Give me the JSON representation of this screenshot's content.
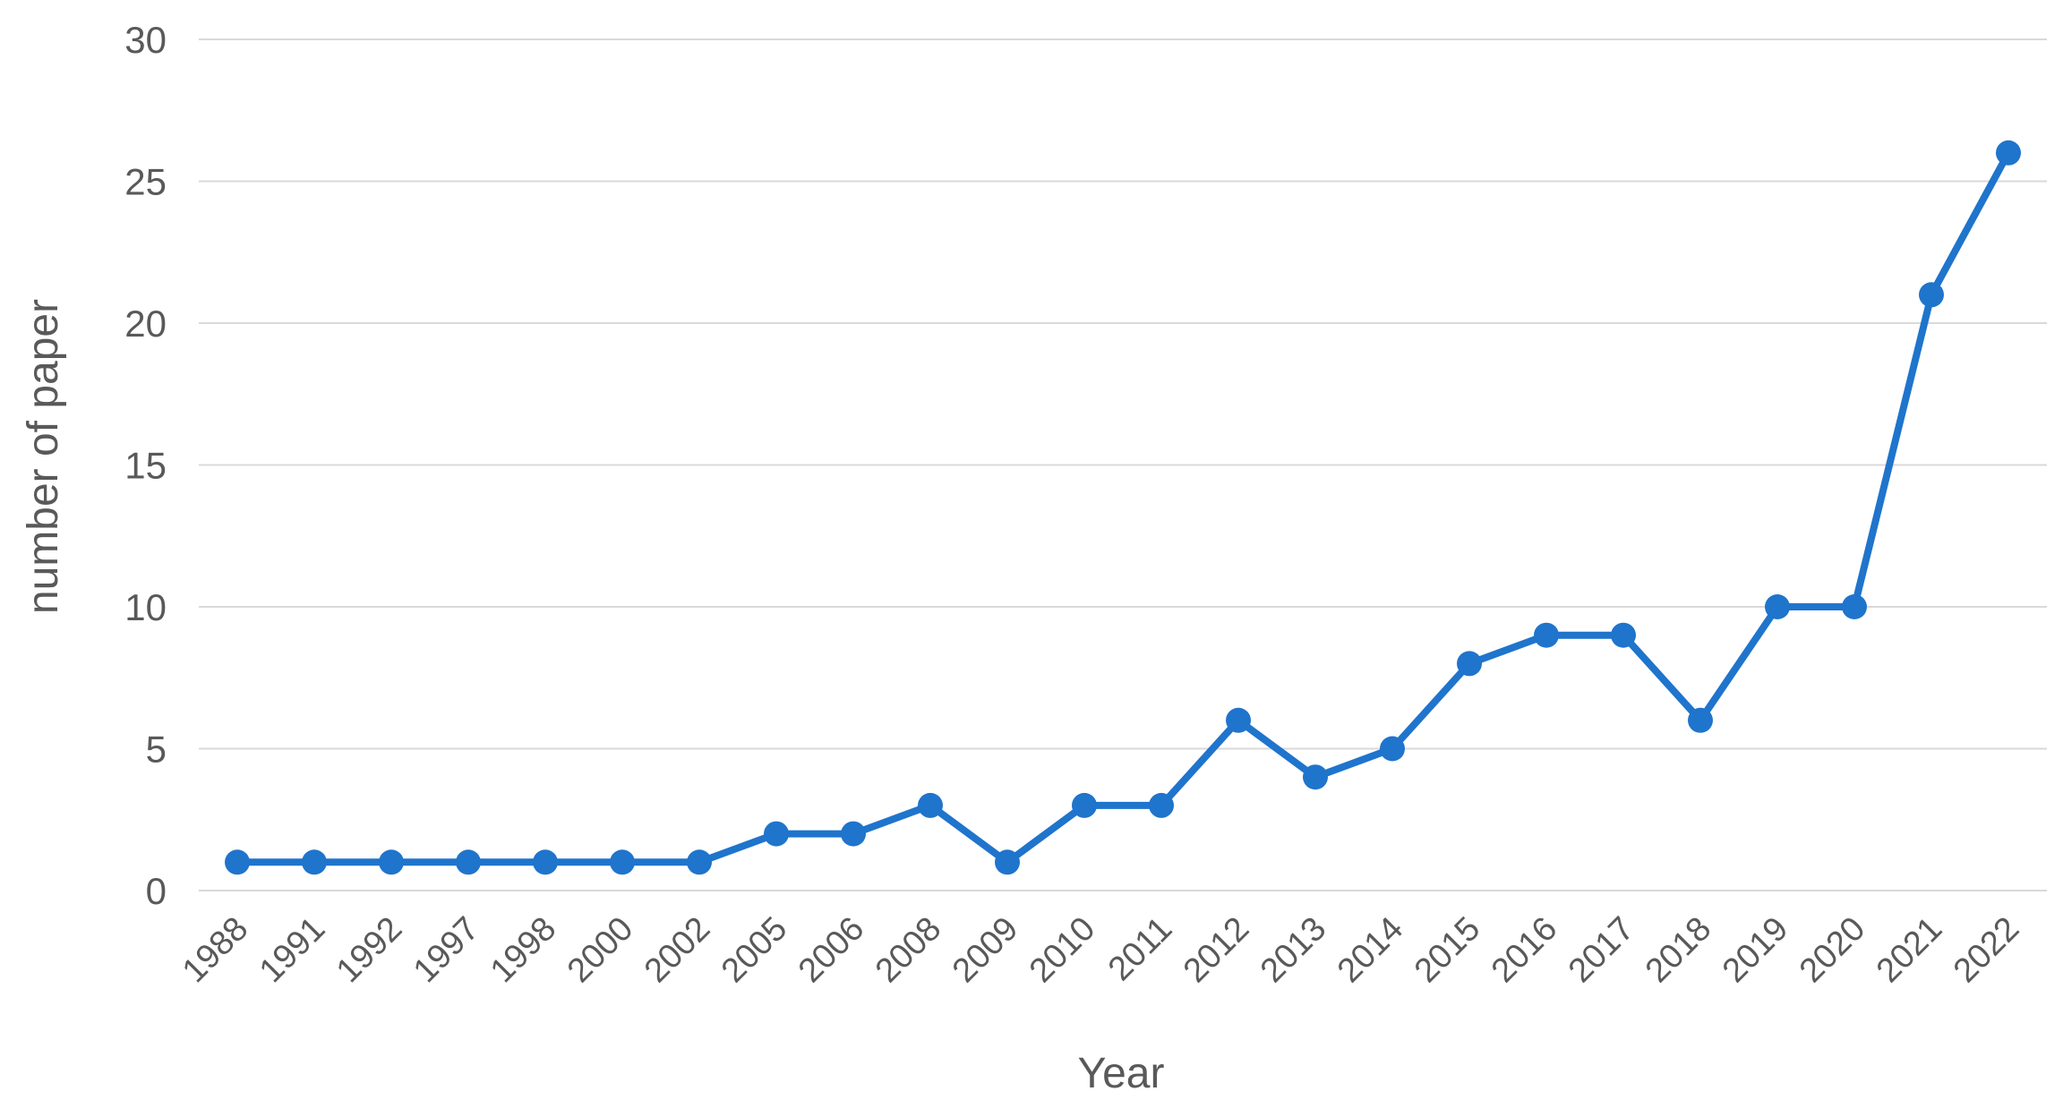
{
  "chart_data": {
    "type": "line",
    "title": "",
    "xlabel": "Year",
    "ylabel": "number of paper",
    "ylim": [
      0,
      30
    ],
    "yticks": [
      0,
      5,
      10,
      15,
      20,
      25,
      30
    ],
    "grid": true,
    "legend": "none",
    "categories": [
      "1988",
      "1991",
      "1992",
      "1997",
      "1998",
      "2000",
      "2002",
      "2005",
      "2006",
      "2008",
      "2009",
      "2010",
      "2011",
      "2012",
      "2013",
      "2014",
      "2015",
      "2016",
      "2017",
      "2018",
      "2019",
      "2020",
      "2021",
      "2022"
    ],
    "series": [
      {
        "values": [
          1,
          1,
          1,
          1,
          1,
          1,
          1,
          2,
          2,
          3,
          1,
          3,
          3,
          6,
          4,
          5,
          8,
          9,
          9,
          6,
          10,
          10,
          21,
          26
        ],
        "color": "#1f74cc"
      }
    ]
  }
}
